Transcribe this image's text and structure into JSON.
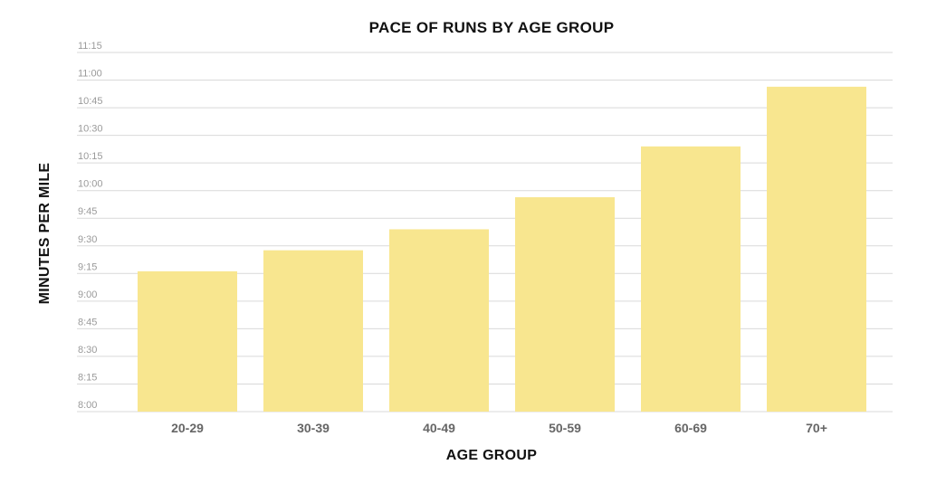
{
  "chart_data": {
    "type": "bar",
    "title": "PACE OF RUNS BY AGE GROUP",
    "xlabel": "AGE GROUP",
    "ylabel": "MINUTES PER MILE",
    "categories": [
      "20-29",
      "30-39",
      "40-49",
      "50-59",
      "60-69",
      "70+"
    ],
    "values": [
      "9:16",
      "9:28",
      "9:39",
      "9:56",
      "10:24",
      "10:56"
    ],
    "values_minutes": [
      9.27,
      9.46,
      9.65,
      9.94,
      10.4,
      10.94
    ],
    "ylim": [
      "8:00",
      "11:15"
    ],
    "yticks": [
      "8:00",
      "8:15",
      "8:30",
      "8:45",
      "9:00",
      "9:15",
      "9:30",
      "9:45",
      "10:00",
      "10:15",
      "10:30",
      "10:45",
      "11:00",
      "11:15"
    ],
    "grid": true,
    "bar_color": "#f8e68f"
  }
}
